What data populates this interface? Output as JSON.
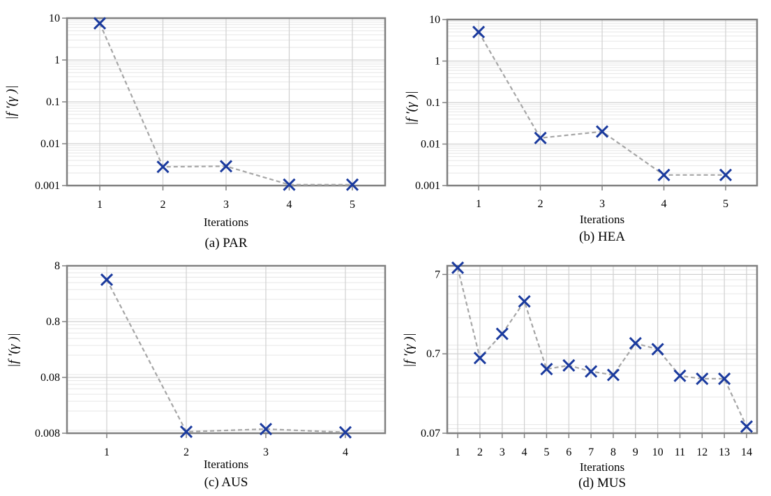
{
  "colors": {
    "marker": "#1a3a9e",
    "line": "#a6a6a6",
    "frame": "#808080",
    "grid_major": "#d0d0d0",
    "grid_minor": "#e6e6e6"
  },
  "chart_data": [
    {
      "type": "line",
      "caption": "(a) PAR",
      "xlabel": "Iterations",
      "ylabel": "|f '(γ )|",
      "yscale": "log",
      "ylim": [
        0.001,
        10
      ],
      "x": [
        1,
        2,
        3,
        4,
        5
      ],
      "xticks": [
        1,
        2,
        3,
        4,
        5
      ],
      "xticklabels": [
        "1",
        "2",
        "3",
        "4",
        "5"
      ],
      "yticks": [
        0.001,
        0.01,
        0.1,
        1,
        10
      ],
      "yticklabels": [
        "0.001",
        "0.01",
        "0.1",
        "1",
        "10"
      ],
      "series": [
        {
          "name": "|f '(γ )|",
          "values": [
            7.5,
            0.0028,
            0.0029,
            0.00105,
            0.00105
          ]
        }
      ]
    },
    {
      "type": "line",
      "caption": "(b) HEA",
      "xlabel": "Iterations",
      "ylabel": "|f '(γ )|",
      "yscale": "log",
      "ylim": [
        0.001,
        10
      ],
      "x": [
        1,
        2,
        3,
        4,
        5
      ],
      "xticks": [
        1,
        2,
        3,
        4,
        5
      ],
      "xticklabels": [
        "1",
        "2",
        "3",
        "4",
        "5"
      ],
      "yticks": [
        0.001,
        0.01,
        0.1,
        1,
        10
      ],
      "yticklabels": [
        "0.001",
        "0.01",
        "0.1",
        "1",
        "10"
      ],
      "series": [
        {
          "name": "|f '(γ )|",
          "values": [
            5,
            0.014,
            0.02,
            0.0018,
            0.0018
          ]
        }
      ]
    },
    {
      "type": "line",
      "caption": "(c) AUS",
      "xlabel": "Iterations",
      "ylabel": "|f '(γ )|",
      "yscale": "log",
      "ylim": [
        0.008,
        8
      ],
      "x": [
        1,
        2,
        3,
        4
      ],
      "xticks": [
        1,
        2,
        3,
        4
      ],
      "xticklabels": [
        "1",
        "2",
        "3",
        "4"
      ],
      "yticks": [
        0.008,
        0.08,
        0.8,
        8
      ],
      "yticklabels": [
        "0.008",
        "0.08",
        "0.8",
        "8"
      ],
      "series": [
        {
          "name": "|f '(γ )|",
          "values": [
            4.5,
            0.0085,
            0.0095,
            0.0083
          ]
        }
      ]
    },
    {
      "type": "line",
      "caption": "(d) MUS",
      "xlabel": "Iterations",
      "ylabel": "|f '(γ )|",
      "yscale": "log",
      "ylim": [
        0.07,
        9
      ],
      "x": [
        1,
        2,
        3,
        4,
        5,
        6,
        7,
        8,
        9,
        10,
        11,
        12,
        13,
        14
      ],
      "xticks": [
        1,
        2,
        3,
        4,
        5,
        6,
        7,
        8,
        9,
        10,
        11,
        12,
        13,
        14
      ],
      "xticklabels": [
        "1",
        "2",
        "3",
        "4",
        "5",
        "6",
        "7",
        "8",
        "9",
        "10",
        "11",
        "12",
        "13",
        "14"
      ],
      "yticks": [
        0.07,
        0.7,
        7
      ],
      "yticklabels": [
        "0.07",
        "0.7",
        "7"
      ],
      "series": [
        {
          "name": "|f '(γ )|",
          "values": [
            8.5,
            0.62,
            1.25,
            3.2,
            0.45,
            0.5,
            0.42,
            0.38,
            0.95,
            0.8,
            0.37,
            0.34,
            0.34,
            0.085
          ]
        }
      ]
    }
  ]
}
